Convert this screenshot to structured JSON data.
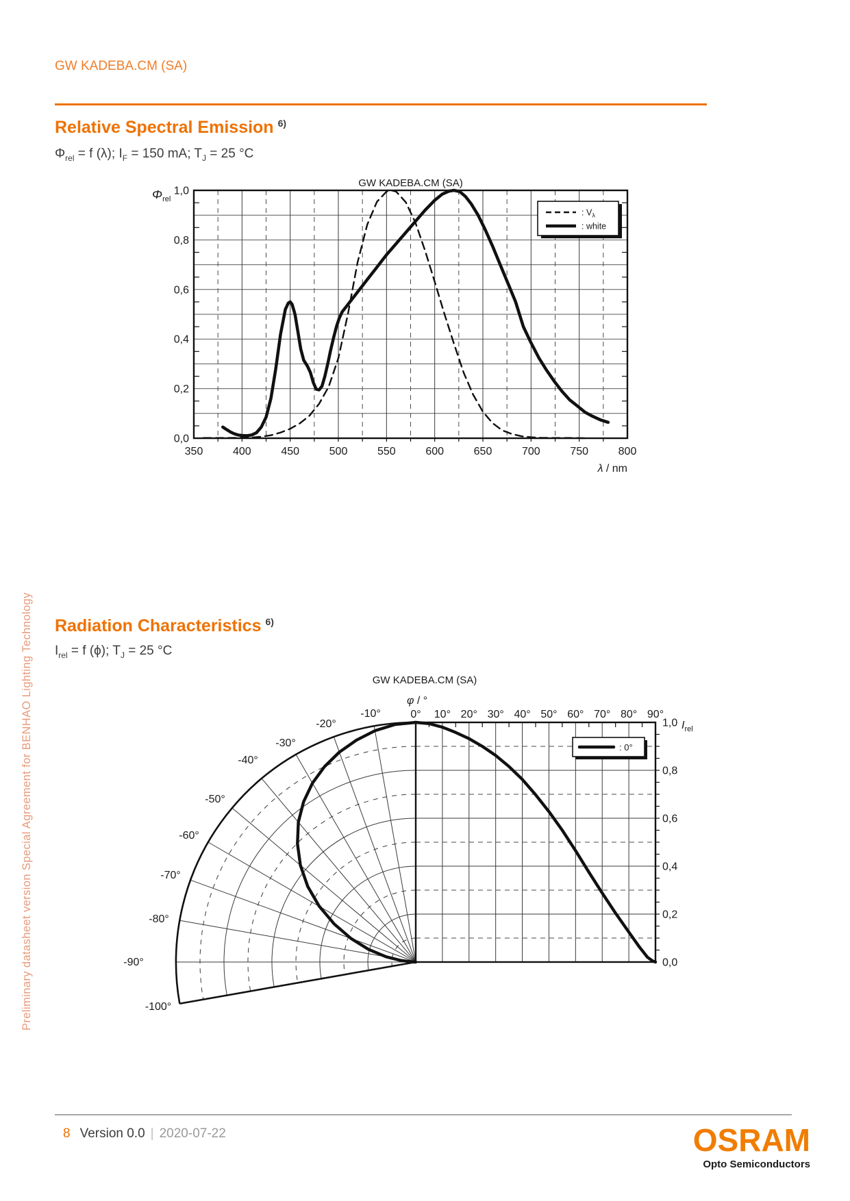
{
  "page": {
    "header": "GW KADEBA.CM (SA)",
    "sidebar_note": "Preliminary datasheet version Special Agreement for BENHAO Lighting Technology",
    "footer": {
      "page_number": "8",
      "version": "Version 0.0",
      "separator": "|",
      "date": "2020-07-22",
      "brand": "OSRAM",
      "brand_sub": "Opto Semiconductors"
    },
    "accent_color": "#ee7203",
    "sidebar_color": "#e89a7a",
    "watermark_color": "#c9c9c9"
  },
  "section1": {
    "title": "Relative Spectral Emission",
    "footnote": "6)",
    "condition": {
      "t1": "Φ",
      "b1": "rel",
      "t2": " = f (λ); I",
      "b2": "F",
      "t3": " = 150 mA; T",
      "b3": "J",
      "t4": " = 25 °C"
    }
  },
  "section2": {
    "title": "Radiation Characteristics",
    "footnote": "6)",
    "condition": {
      "t1": "I",
      "b1": "rel",
      "t2": " = f (ϕ); T",
      "b2": "J",
      "t3": " = 25 °C"
    }
  },
  "chart_data": [
    {
      "type": "line",
      "watermark": "GW KADEBA.CM (SA)",
      "ylabel_main": "Φ",
      "ylabel_sub": "rel",
      "xlabel_main": "λ",
      "xlabel_rest": " / nm",
      "xlim": [
        350,
        800
      ],
      "ylim": [
        0.0,
        1.0
      ],
      "grid": "solid 50 nm / 0.1, dashed 25 nm minor",
      "legend_position": "top-right",
      "x_ticks": [
        {
          "v": 350,
          "label": "350"
        },
        {
          "v": 400,
          "label": "400"
        },
        {
          "v": 450,
          "label": "450"
        },
        {
          "v": 500,
          "label": "500"
        },
        {
          "v": 550,
          "label": "550"
        },
        {
          "v": 600,
          "label": "600"
        },
        {
          "v": 650,
          "label": "650"
        },
        {
          "v": 700,
          "label": "700"
        },
        {
          "v": 750,
          "label": "750"
        },
        {
          "v": 800,
          "label": "800"
        }
      ],
      "y_ticks": [
        {
          "v": 0.0,
          "label": "0,0"
        },
        {
          "v": 0.2,
          "label": "0,2"
        },
        {
          "v": 0.4,
          "label": "0,4"
        },
        {
          "v": 0.6,
          "label": "0,6"
        },
        {
          "v": 0.8,
          "label": "0,8"
        },
        {
          "v": 1.0,
          "label": "1,0"
        }
      ],
      "legend": [
        {
          "label_main": ": V",
          "label_sub": "λ",
          "line": "dashed"
        },
        {
          "label_main": ": white",
          "label_sub": "",
          "line": "solid"
        }
      ],
      "series": [
        {
          "name": "Vλ",
          "style": "dashed",
          "points": [
            [
              360,
              0.001
            ],
            [
              380,
              0.001
            ],
            [
              400,
              0.002
            ],
            [
              410,
              0.003
            ],
            [
              420,
              0.006
            ],
            [
              430,
              0.012
            ],
            [
              440,
              0.023
            ],
            [
              450,
              0.038
            ],
            [
              460,
              0.06
            ],
            [
              470,
              0.091
            ],
            [
              480,
              0.139
            ],
            [
              490,
              0.208
            ],
            [
              500,
              0.323
            ],
            [
              510,
              0.503
            ],
            [
              520,
              0.71
            ],
            [
              530,
              0.862
            ],
            [
              540,
              0.954
            ],
            [
              550,
              0.995
            ],
            [
              555,
              1.0
            ],
            [
              560,
              0.995
            ],
            [
              570,
              0.952
            ],
            [
              580,
              0.87
            ],
            [
              590,
              0.757
            ],
            [
              600,
              0.631
            ],
            [
              610,
              0.503
            ],
            [
              620,
              0.381
            ],
            [
              630,
              0.265
            ],
            [
              640,
              0.175
            ],
            [
              650,
              0.107
            ],
            [
              660,
              0.061
            ],
            [
              670,
              0.032
            ],
            [
              680,
              0.017
            ],
            [
              690,
              0.008
            ],
            [
              700,
              0.004
            ],
            [
              710,
              0.002
            ],
            [
              720,
              0.001
            ],
            [
              740,
              0.001
            ],
            [
              760,
              0.0
            ]
          ]
        },
        {
          "name": "white",
          "style": "solid",
          "points": [
            [
              380,
              0.045
            ],
            [
              384,
              0.035
            ],
            [
              388,
              0.025
            ],
            [
              392,
              0.018
            ],
            [
              396,
              0.013
            ],
            [
              400,
              0.011
            ],
            [
              405,
              0.01
            ],
            [
              410,
              0.013
            ],
            [
              415,
              0.022
            ],
            [
              420,
              0.045
            ],
            [
              425,
              0.085
            ],
            [
              430,
              0.16
            ],
            [
              435,
              0.28
            ],
            [
              440,
              0.42
            ],
            [
              445,
              0.52
            ],
            [
              448,
              0.545
            ],
            [
              450,
              0.55
            ],
            [
              452,
              0.54
            ],
            [
              455,
              0.5
            ],
            [
              458,
              0.43
            ],
            [
              461,
              0.36
            ],
            [
              464,
              0.315
            ],
            [
              468,
              0.29
            ],
            [
              471,
              0.265
            ],
            [
              474,
              0.225
            ],
            [
              477,
              0.198
            ],
            [
              480,
              0.195
            ],
            [
              483,
              0.21
            ],
            [
              486,
              0.25
            ],
            [
              489,
              0.3
            ],
            [
              492,
              0.355
            ],
            [
              495,
              0.405
            ],
            [
              498,
              0.45
            ],
            [
              501,
              0.485
            ],
            [
              504,
              0.51
            ],
            [
              508,
              0.53
            ],
            [
              512,
              0.55
            ],
            [
              516,
              0.57
            ],
            [
              520,
              0.59
            ],
            [
              525,
              0.615
            ],
            [
              530,
              0.64
            ],
            [
              540,
              0.69
            ],
            [
              550,
              0.74
            ],
            [
              560,
              0.785
            ],
            [
              570,
              0.83
            ],
            [
              580,
              0.875
            ],
            [
              590,
              0.92
            ],
            [
              600,
              0.96
            ],
            [
              608,
              0.985
            ],
            [
              615,
              0.997
            ],
            [
              620,
              1.0
            ],
            [
              626,
              0.995
            ],
            [
              632,
              0.975
            ],
            [
              638,
              0.945
            ],
            [
              645,
              0.9
            ],
            [
              652,
              0.845
            ],
            [
              660,
              0.775
            ],
            [
              668,
              0.7
            ],
            [
              676,
              0.625
            ],
            [
              684,
              0.55
            ],
            [
              692,
              0.45
            ],
            [
              700,
              0.385
            ],
            [
              708,
              0.325
            ],
            [
              716,
              0.275
            ],
            [
              724,
              0.23
            ],
            [
              732,
              0.19
            ],
            [
              740,
              0.155
            ],
            [
              748,
              0.13
            ],
            [
              756,
              0.105
            ],
            [
              764,
              0.088
            ],
            [
              772,
              0.074
            ],
            [
              780,
              0.064
            ]
          ]
        }
      ]
    },
    {
      "type": "polar-cartesian radiation pattern",
      "watermark": "GW KADEBA.CM (SA)",
      "angle_axis_main": "φ",
      "angle_axis_rest": " / °",
      "radial_axis_main": "I",
      "radial_axis_sub": "rel",
      "radial_lim": [
        0.0,
        1.0
      ],
      "top_labels": [
        "0°",
        "10°",
        "20°",
        "30°",
        "40°",
        "50°",
        "60°",
        "70°",
        "80°",
        "90°"
      ],
      "left_labels": [
        "-10°",
        "-20°",
        "-30°",
        "-40°",
        "-50°",
        "-60°",
        "-70°",
        "-80°",
        "-90°",
        "-100°"
      ],
      "right_labels": [
        {
          "v": 1.0,
          "label": "1,0"
        },
        {
          "v": 0.8,
          "label": "0,8"
        },
        {
          "v": 0.6,
          "label": "0,6"
        },
        {
          "v": 0.4,
          "label": "0,4"
        },
        {
          "v": 0.2,
          "label": "0,2"
        },
        {
          "v": 0.0,
          "label": "0,0"
        }
      ],
      "legend": [
        {
          "label": ": 0°",
          "line": "solid"
        }
      ],
      "series": [
        {
          "name": "0°",
          "points_phi_I": [
            [
              0,
              1.0
            ],
            [
              5,
              0.995
            ],
            [
              10,
              0.98
            ],
            [
              15,
              0.958
            ],
            [
              20,
              0.932
            ],
            [
              25,
              0.9
            ],
            [
              30,
              0.862
            ],
            [
              35,
              0.816
            ],
            [
              40,
              0.762
            ],
            [
              45,
              0.698
            ],
            [
              50,
              0.628
            ],
            [
              55,
              0.55
            ],
            [
              60,
              0.465
            ],
            [
              65,
              0.375
            ],
            [
              70,
              0.288
            ],
            [
              75,
              0.204
            ],
            [
              80,
              0.125
            ],
            [
              84,
              0.062
            ],
            [
              87,
              0.02
            ],
            [
              89,
              0.004
            ],
            [
              90,
              0.0
            ]
          ]
        }
      ]
    }
  ]
}
